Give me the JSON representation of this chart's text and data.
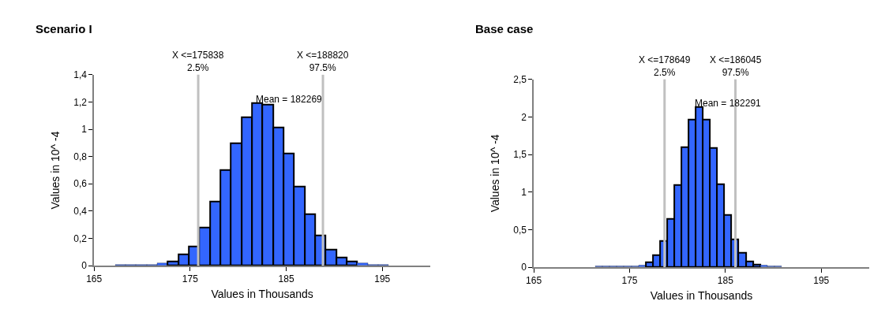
{
  "chart_data": [
    {
      "type": "histogram",
      "title": "Scenario I",
      "xlabel": "Values in Thousands",
      "ylabel": "Values in 10^ -4",
      "color": "#3366ff",
      "bins": [
        167.2,
        168.3,
        169.39,
        170.49,
        171.58,
        172.68,
        173.77,
        174.87,
        175.96,
        177.06,
        178.15,
        179.25,
        180.34,
        181.44,
        182.53,
        183.63,
        184.72,
        185.82,
        186.91,
        188.01,
        189.1,
        190.2,
        191.29,
        192.39,
        193.48,
        194.58,
        195.67
      ],
      "values": [
        0.01,
        0.01,
        0.01,
        0.01,
        0.02,
        0.03,
        0.08,
        0.14,
        0.28,
        0.47,
        0.7,
        0.9,
        1.09,
        1.19,
        1.18,
        1.01,
        0.82,
        0.58,
        0.38,
        0.22,
        0.12,
        0.06,
        0.03,
        0.02,
        0.01,
        0.01
      ],
      "xlim": [
        165,
        200
      ],
      "xticks": [
        165,
        175,
        185,
        195
      ],
      "ylim": [
        0,
        1.4
      ],
      "yticks": [
        0,
        {
          "value": 0.2,
          "label": "0,2"
        },
        {
          "value": 0.4,
          "label": "0,4"
        },
        {
          "value": 0.6,
          "label": "0,6"
        },
        {
          "value": 0.8,
          "label": "0,8"
        },
        1,
        {
          "value": 1.2,
          "label": "1,2"
        },
        {
          "value": 1.4,
          "label": "1,4"
        }
      ],
      "ref_lines": [
        {
          "axis": "x",
          "value": 175.838,
          "label": "X <=175838\n2.5%",
          "color": "#c0c0c0"
        },
        {
          "axis": "x",
          "value": 188.82,
          "label": "X <=188820\n97.5%",
          "color": "#c0c0c0"
        }
      ],
      "annotations": [
        "Mean = 182269"
      ]
    },
    {
      "type": "histogram",
      "title": "Base case",
      "xlabel": "Values in Thousands",
      "ylabel": "Values in 10^ -4",
      "color": "#3366ff",
      "bins": [
        171.44,
        172.19,
        172.93,
        173.68,
        174.43,
        175.18,
        175.92,
        176.67,
        177.42,
        178.16,
        178.91,
        179.66,
        180.4,
        181.15,
        181.9,
        182.65,
        183.39,
        184.14,
        184.89,
        185.63,
        186.38,
        187.13,
        187.87,
        188.62,
        189.37,
        190.12,
        190.86
      ],
      "values": [
        0.01,
        0.01,
        0.01,
        0.01,
        0.01,
        0.01,
        0.02,
        0.07,
        0.16,
        0.35,
        0.64,
        1.1,
        1.6,
        1.96,
        2.13,
        1.96,
        1.59,
        1.11,
        0.7,
        0.37,
        0.19,
        0.08,
        0.04,
        0.02,
        0.01,
        0.01
      ],
      "xlim": [
        165,
        200
      ],
      "xticks": [
        165,
        175,
        185,
        195
      ],
      "ylim": [
        0,
        2.5
      ],
      "yticks": [
        0,
        {
          "value": 0.5,
          "label": "0,5"
        },
        1,
        {
          "value": 1.5,
          "label": "1,5"
        },
        2,
        {
          "value": 2.5,
          "label": "2,5"
        }
      ],
      "ref_lines": [
        {
          "axis": "x",
          "value": 178.649,
          "label": "X <=178649\n2.5%",
          "color": "#c0c0c0"
        },
        {
          "axis": "x",
          "value": 186.045,
          "label": "X <=186045\n97.5%",
          "color": "#c0c0c0"
        }
      ],
      "annotations": [
        "Mean = 182291"
      ]
    }
  ]
}
